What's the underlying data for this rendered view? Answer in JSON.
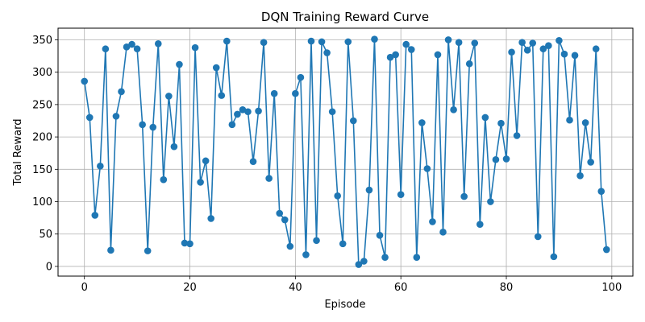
{
  "chart_data": {
    "type": "line",
    "title": "DQN Training Reward Curve",
    "xlabel": "Episode",
    "ylabel": "Total Reward",
    "xlim": [
      -5,
      104
    ],
    "ylim": [
      -15,
      368
    ],
    "xticks": [
      0,
      20,
      40,
      60,
      80,
      100
    ],
    "yticks": [
      0,
      50,
      100,
      150,
      200,
      250,
      300,
      350
    ],
    "grid": true,
    "series": [
      {
        "name": "",
        "color": "#1f77b4",
        "marker": "circle",
        "x": [
          0,
          1,
          2,
          3,
          4,
          5,
          6,
          7,
          8,
          9,
          10,
          11,
          12,
          13,
          14,
          15,
          16,
          17,
          18,
          19,
          20,
          21,
          22,
          23,
          24,
          25,
          26,
          27,
          28,
          29,
          30,
          31,
          32,
          33,
          34,
          35,
          36,
          37,
          38,
          39,
          40,
          41,
          42,
          43,
          44,
          45,
          46,
          47,
          48,
          49,
          50,
          51,
          52,
          53,
          54,
          55,
          56,
          57,
          58,
          59,
          60,
          61,
          62,
          63,
          64,
          65,
          66,
          67,
          68,
          69,
          70,
          71,
          72,
          73,
          74,
          75,
          76,
          77,
          78,
          79,
          80,
          81,
          82,
          83,
          84,
          85,
          86,
          87,
          88,
          89,
          90,
          91,
          92,
          93,
          94,
          95,
          96,
          97,
          98,
          99
        ],
        "y": [
          286,
          230,
          79,
          155,
          336,
          25,
          232,
          270,
          339,
          343,
          336,
          219,
          24,
          215,
          344,
          134,
          263,
          185,
          312,
          36,
          35,
          338,
          130,
          163,
          74,
          307,
          264,
          348,
          219,
          235,
          242,
          239,
          162,
          240,
          346,
          136,
          267,
          82,
          72,
          31,
          267,
          292,
          18,
          348,
          40,
          347,
          330,
          239,
          109,
          35,
          347,
          225,
          3,
          8,
          118,
          351,
          48,
          14,
          323,
          327,
          111,
          343,
          335,
          14,
          222,
          151,
          69,
          327,
          53,
          350,
          242,
          346,
          108,
          313,
          345,
          65,
          230,
          100,
          165,
          221,
          166,
          331,
          202,
          346,
          334,
          345,
          46,
          336,
          341,
          15,
          349,
          328,
          226,
          326,
          140,
          222,
          161,
          336,
          116,
          26
        ]
      }
    ]
  }
}
